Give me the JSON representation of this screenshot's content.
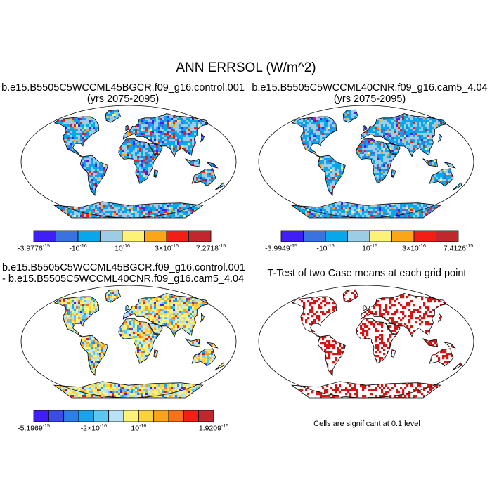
{
  "main_title": "ANN ERRSOL (W/m^2)",
  "panels": {
    "p1": {
      "title": "b.e15.B5505C5WCCML45BGCR.f09_g16.control.001",
      "subtitle": "(yrs 2075-2095)",
      "colorbar": {
        "colors": [
          "#3f1ff3",
          "#3a73e0",
          "#0aa6ec",
          "#9ccce6",
          "#fbf277",
          "#fba618",
          "#f21f17",
          "#c1282d"
        ],
        "labels": [
          {
            "m": "-3.9776",
            "e": "-15",
            "i": 0
          },
          {
            "m": "-10",
            "e": "-16",
            "i": 2
          },
          {
            "m": "10",
            "e": "-16",
            "i": 4
          },
          {
            "m": "3×10",
            "e": "-16",
            "i": 6
          },
          {
            "m": "7.2718",
            "e": "-15",
            "i": 8
          }
        ]
      }
    },
    "p2": {
      "title": "b.e15.B5505C5WCCML40CNR.f09_g16.cam5_4.04",
      "subtitle": "(yrs 2075-2095)",
      "colorbar": {
        "colors": [
          "#3f1ff3",
          "#3a73e0",
          "#0aa6ec",
          "#9ccce6",
          "#fbf277",
          "#fba618",
          "#f21f17",
          "#c1282d"
        ],
        "labels": [
          {
            "m": "-3.9949",
            "e": "-15",
            "i": 0
          },
          {
            "m": "-10",
            "e": "-16",
            "i": 2
          },
          {
            "m": "10",
            "e": "-16",
            "i": 4
          },
          {
            "m": "3×10",
            "e": "-16",
            "i": 6
          },
          {
            "m": "7.4126",
            "e": "-15",
            "i": 8
          }
        ]
      }
    },
    "p3": {
      "title": "b.e15.B5505C5WCCML45BGCR.f09_g16.control.001",
      "subtitle": "- b.e15.B5505C5WCCML40CNR.f09_g16.cam5_4.04",
      "colorbar": {
        "colors": [
          "#3f1ff3",
          "#3a4ee6",
          "#2b7fe6",
          "#1ba4ec",
          "#5cc8f2",
          "#b9e3f4",
          "#fbf277",
          "#fbd13c",
          "#f9a21a",
          "#f5711a",
          "#f21f17",
          "#c1282d"
        ],
        "labels": [
          {
            "m": "-5.1969",
            "e": "-15",
            "i": 0
          },
          {
            "m": "-2×10",
            "e": "-16",
            "i": 4
          },
          {
            "m": "10",
            "e": "-16",
            "i": 7
          },
          {
            "m": "1.9209",
            "e": "-15",
            "i": 12
          }
        ]
      }
    },
    "p4": {
      "title": "T-Test of two Case means at each grid point",
      "note": "Cells are significant at 0.1 level"
    }
  }
}
